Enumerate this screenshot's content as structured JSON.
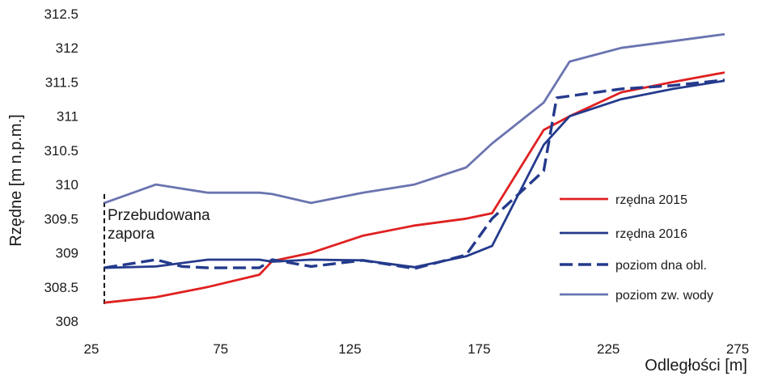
{
  "chart_data": {
    "type": "line",
    "ylabel": "Rzędne [m n.p.m.]",
    "xlabel": "Odległości [m]",
    "xlim": [
      25,
      275
    ],
    "ylim": [
      308,
      312.5
    ],
    "xticks": [
      25,
      75,
      125,
      175,
      225,
      275
    ],
    "yticks": [
      308,
      308.5,
      309,
      309.5,
      310,
      310.5,
      311,
      311.5,
      312,
      312.5
    ],
    "grid": false,
    "legend_position": "right",
    "annotation": {
      "lines": [
        "Przebudowana",
        "zapora"
      ],
      "x": 30,
      "y_from": 308.25,
      "y_to": 309.9
    },
    "series": [
      {
        "name": "rzędna 2015",
        "color": "#e02020",
        "dash": false,
        "width": 2.8,
        "x": [
          30,
          50,
          70,
          90,
          95,
          110,
          130,
          150,
          170,
          180,
          200,
          210,
          230,
          250,
          270
        ],
        "y": [
          308.27,
          308.35,
          308.5,
          308.68,
          308.88,
          309.0,
          309.25,
          309.4,
          309.5,
          309.58,
          310.8,
          311.0,
          311.35,
          311.5,
          311.64
        ]
      },
      {
        "name": "rzędna 2016",
        "color": "#243a8c",
        "dash": false,
        "width": 2.8,
        "x": [
          30,
          50,
          70,
          90,
          95,
          110,
          130,
          150,
          170,
          180,
          200,
          210,
          230,
          250,
          270
        ],
        "y": [
          308.78,
          308.8,
          308.9,
          308.9,
          308.87,
          308.9,
          308.89,
          308.79,
          308.95,
          309.1,
          310.58,
          311.0,
          311.25,
          311.4,
          311.52
        ]
      },
      {
        "name": "poziom dna obl.",
        "color": "#243a8c",
        "dash": true,
        "width": 3.4,
        "x": [
          30,
          50,
          60,
          70,
          90,
          95,
          110,
          130,
          150,
          170,
          180,
          200,
          205,
          230,
          250,
          270
        ],
        "y": [
          308.78,
          308.9,
          308.8,
          308.78,
          308.78,
          308.9,
          308.8,
          308.89,
          308.77,
          308.97,
          309.5,
          310.2,
          311.27,
          311.4,
          311.45,
          311.53
        ]
      },
      {
        "name": "poziom zw. wody",
        "color": "#6a74b0",
        "dash": false,
        "width": 2.8,
        "x": [
          30,
          50,
          70,
          90,
          95,
          110,
          130,
          150,
          170,
          180,
          200,
          210,
          230,
          250,
          270
        ],
        "y": [
          309.73,
          310.0,
          309.88,
          309.88,
          309.86,
          309.73,
          309.88,
          310.0,
          310.25,
          310.6,
          311.2,
          311.8,
          312.0,
          312.1,
          312.2
        ]
      }
    ]
  }
}
